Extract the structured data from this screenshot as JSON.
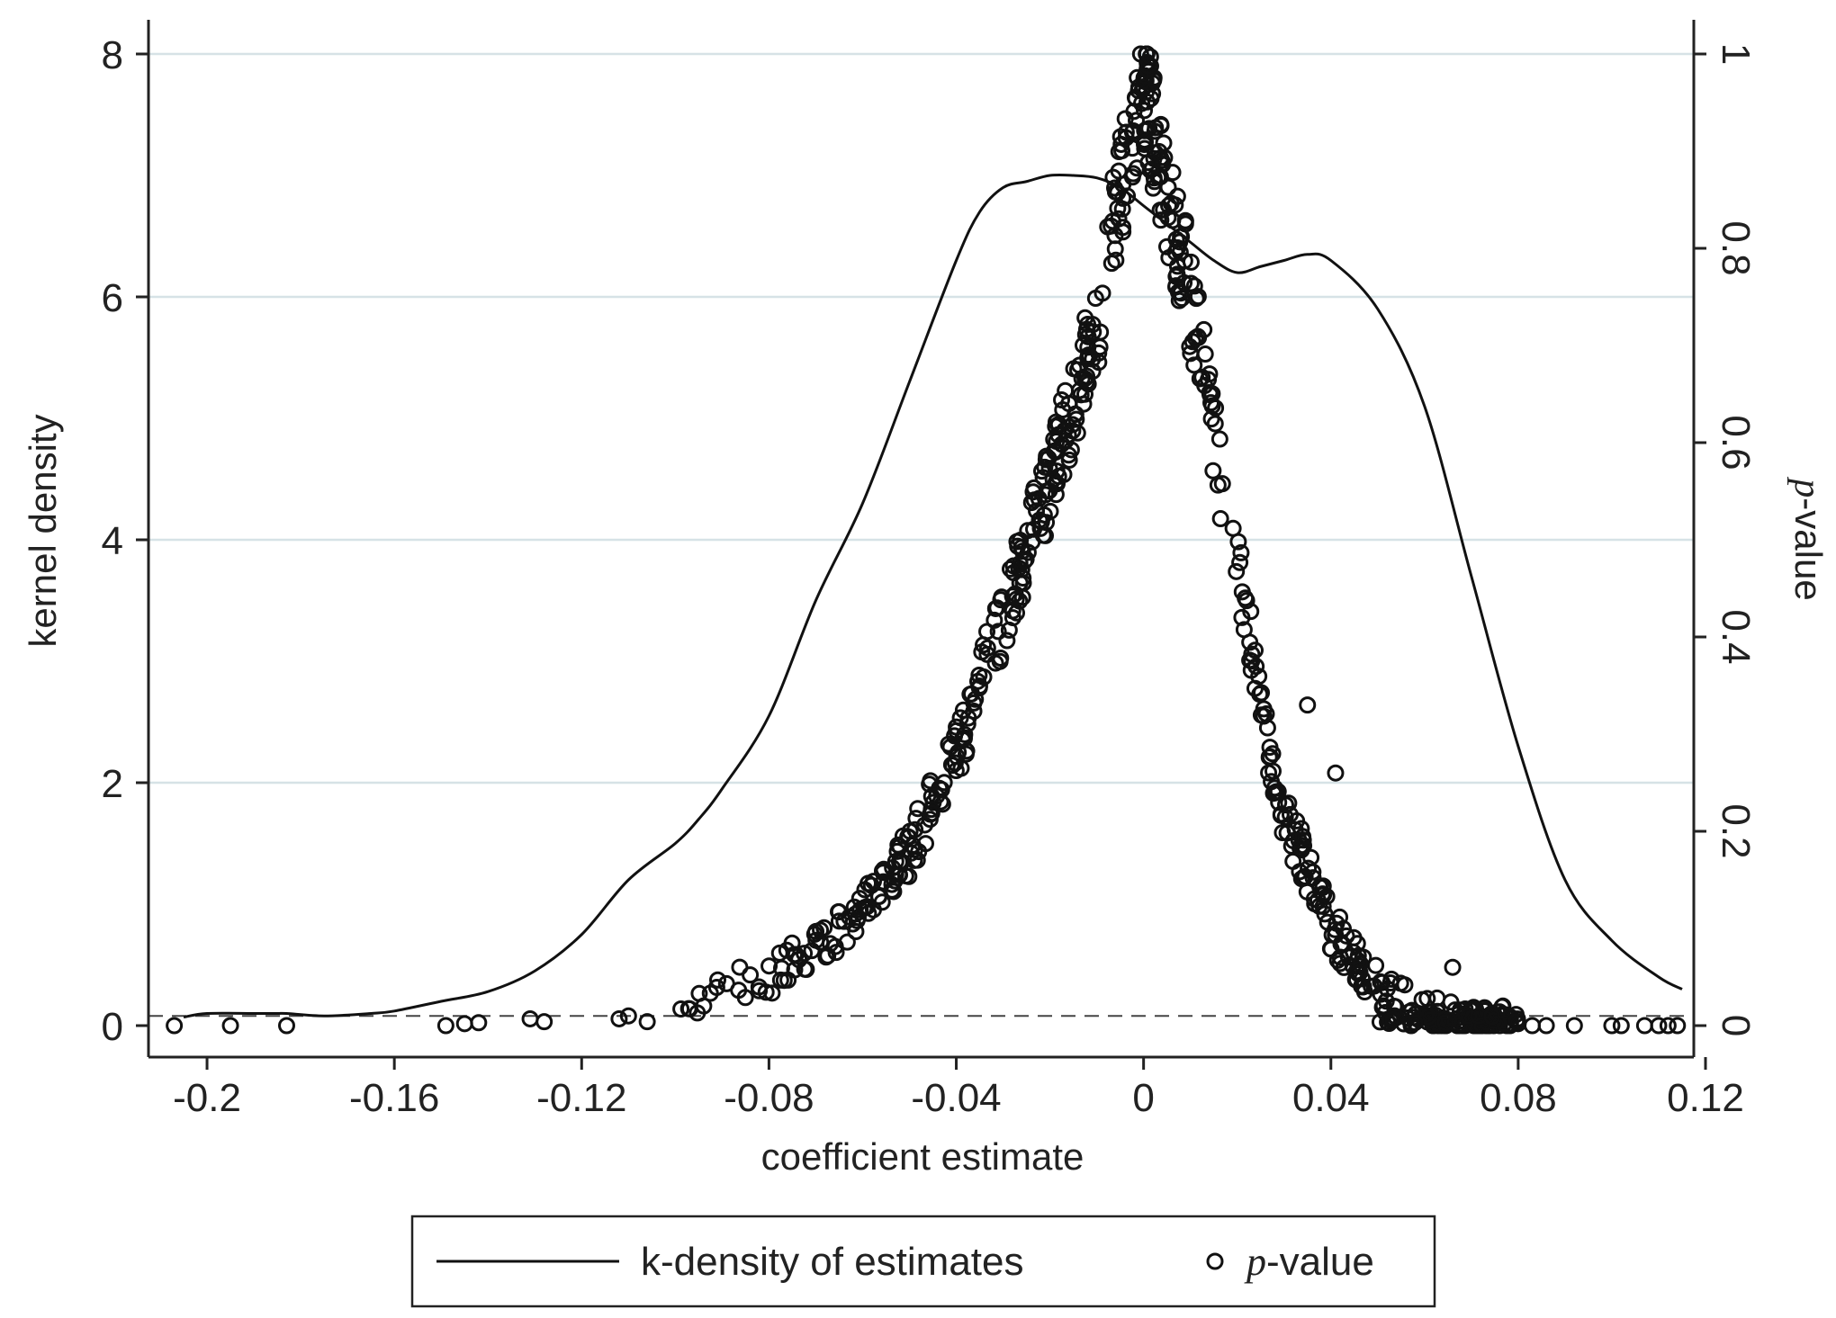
{
  "chart_data": {
    "type": "line+scatter",
    "title": "",
    "xlabel": "coefficient estimate",
    "ylabel_left": "kernel density",
    "ylabel_right": {
      "italic": "p",
      "rest": "-value"
    },
    "xlim": [
      -0.2125,
      0.1175
    ],
    "ylim_left": [
      0,
      8
    ],
    "ylim_right": [
      0,
      1
    ],
    "xticks": [
      -0.2,
      -0.16,
      -0.12,
      -0.08,
      -0.04,
      0,
      0.04,
      0.08,
      0.12
    ],
    "xtick_labels": [
      "-0.2",
      "-0.16",
      "-0.12",
      "-0.08",
      "-0.04",
      "0",
      "0.04",
      "0.08",
      "0.12"
    ],
    "yticks_left": [
      0,
      2,
      4,
      6,
      8
    ],
    "ytick_labels_left": [
      "0",
      "2",
      "4",
      "6",
      "8"
    ],
    "yticks_right": [
      0,
      0.2,
      0.4,
      0.6,
      0.8,
      1
    ],
    "ytick_labels_right": [
      "0",
      "0.2",
      "0.4",
      "0.6",
      "0.8",
      "1"
    ],
    "grid": "horizontal",
    "reference_line": {
      "axis": "right",
      "value": 0.01,
      "style": "dashed"
    },
    "series": [
      {
        "name": "k-density of estimates",
        "kind": "line",
        "axis": "left",
        "x": [
          -0.205,
          -0.2,
          -0.19,
          -0.185,
          -0.183,
          -0.175,
          -0.165,
          -0.16,
          -0.15,
          -0.14,
          -0.13,
          -0.12,
          -0.11,
          -0.1,
          -0.095,
          -0.09,
          -0.08,
          -0.07,
          -0.06,
          -0.05,
          -0.04,
          -0.035,
          -0.03,
          -0.025,
          -0.02,
          -0.015,
          -0.01,
          -0.005,
          0,
          0.005,
          0.01,
          0.015,
          0.02,
          0.025,
          0.03,
          0.035,
          0.04,
          0.05,
          0.06,
          0.07,
          0.08,
          0.09,
          0.1,
          0.11,
          0.115
        ],
        "values": [
          0.07,
          0.1,
          0.1,
          0.1,
          0.1,
          0.08,
          0.1,
          0.12,
          0.2,
          0.28,
          0.45,
          0.75,
          1.2,
          1.5,
          1.7,
          1.95,
          2.55,
          3.5,
          4.3,
          5.3,
          6.3,
          6.7,
          6.9,
          6.95,
          7,
          7,
          6.98,
          6.9,
          6.75,
          6.6,
          6.45,
          6.3,
          6.2,
          6.25,
          6.3,
          6.35,
          6.3,
          5.9,
          5.1,
          3.7,
          2.3,
          1.2,
          0.7,
          0.4,
          0.3
        ]
      },
      {
        "name": "p-value",
        "kind": "scatter",
        "axis": "right",
        "marker": "hollow-circle",
        "generation": "points cluster around a peak at 0 (p≈1) and decay toward p≈0 on both sides; extra points near zero at far x values",
        "anchors_left": [
          [
            -0.1,
            0.02
          ],
          [
            -0.08,
            0.05
          ],
          [
            -0.07,
            0.08
          ],
          [
            -0.06,
            0.12
          ],
          [
            -0.05,
            0.18
          ],
          [
            -0.04,
            0.28
          ],
          [
            -0.03,
            0.42
          ],
          [
            -0.02,
            0.56
          ],
          [
            -0.01,
            0.72
          ],
          [
            -0.005,
            0.86
          ],
          [
            0,
            0.97
          ]
        ],
        "anchors_right": [
          [
            0,
            0.97
          ],
          [
            0.005,
            0.86
          ],
          [
            0.01,
            0.75
          ],
          [
            0.015,
            0.6
          ],
          [
            0.02,
            0.48
          ],
          [
            0.025,
            0.33
          ],
          [
            0.03,
            0.22
          ],
          [
            0.04,
            0.1
          ],
          [
            0.05,
            0.04
          ],
          [
            0.06,
            0.01
          ],
          [
            0.08,
            0.0
          ]
        ],
        "tail_points": [
          [
            -0.207,
            0
          ],
          [
            -0.195,
            0
          ],
          [
            -0.183,
            0
          ],
          [
            -0.149,
            0
          ],
          [
            -0.145,
            0.002
          ],
          [
            -0.142,
            0.003
          ],
          [
            -0.131,
            0.007
          ],
          [
            -0.128,
            0.004
          ],
          [
            -0.112,
            0.007
          ],
          [
            -0.11,
            0.01
          ],
          [
            -0.106,
            0.004
          ],
          [
            0.083,
            0
          ],
          [
            0.086,
            0
          ],
          [
            0.092,
            0
          ],
          [
            0.1,
            0
          ],
          [
            0.102,
            0
          ],
          [
            0.107,
            0
          ],
          [
            0.11,
            0
          ],
          [
            0.112,
            0
          ],
          [
            0.114,
            0
          ],
          [
            0.041,
            0.26
          ],
          [
            0.035,
            0.33
          ],
          [
            0.021,
            0.42
          ],
          [
            0.066,
            0.06
          ]
        ]
      }
    ],
    "legend": {
      "placement": "bottom",
      "entries": [
        {
          "label": "k-density of estimates",
          "marker": "line"
        },
        {
          "label_italic": "p",
          "label_rest": "-value",
          "marker": "hollow-circle"
        }
      ]
    }
  }
}
